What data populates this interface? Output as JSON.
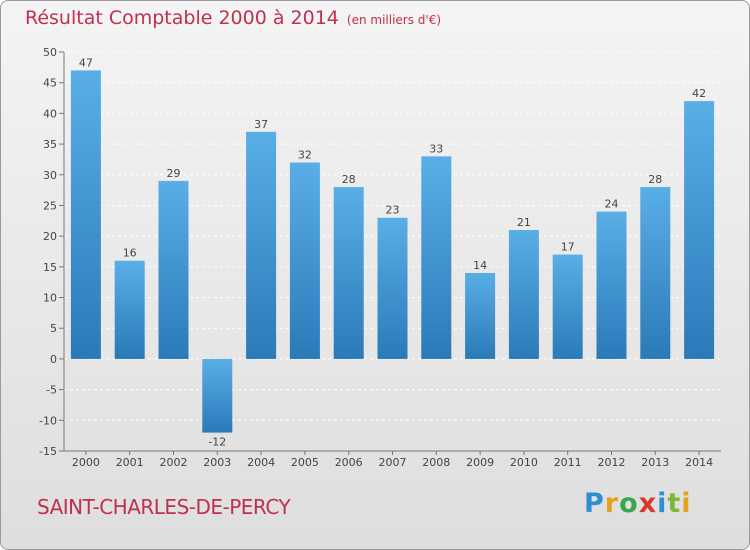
{
  "header": {
    "title": "Résultat Comptable 2000 à 2014",
    "unit": "(en milliers d'€)"
  },
  "footer": {
    "commune": "SAINT-CHARLES-DE-PERCY"
  },
  "logo": {
    "text": "Proxiti"
  },
  "colors": {
    "title": "#c0304f",
    "bar_light": "#5aaee6",
    "bar_dark": "#2a7ab8"
  },
  "chart_data": {
    "type": "bar",
    "title": "Résultat Comptable 2000 à 2014",
    "subtitle": "(en milliers d'€)",
    "xlabel": "",
    "ylabel": "",
    "categories": [
      "2000",
      "2001",
      "2002",
      "2003",
      "2004",
      "2005",
      "2006",
      "2007",
      "2008",
      "2009",
      "2010",
      "2011",
      "2012",
      "2013",
      "2014"
    ],
    "values": [
      47,
      16,
      29,
      -12,
      37,
      32,
      28,
      23,
      33,
      14,
      21,
      17,
      24,
      28,
      42
    ],
    "ylim": [
      -15,
      50
    ],
    "yticks": [
      -15,
      -10,
      -5,
      0,
      5,
      10,
      15,
      20,
      25,
      30,
      35,
      40,
      45,
      50
    ],
    "grid": true,
    "legend": "none"
  }
}
